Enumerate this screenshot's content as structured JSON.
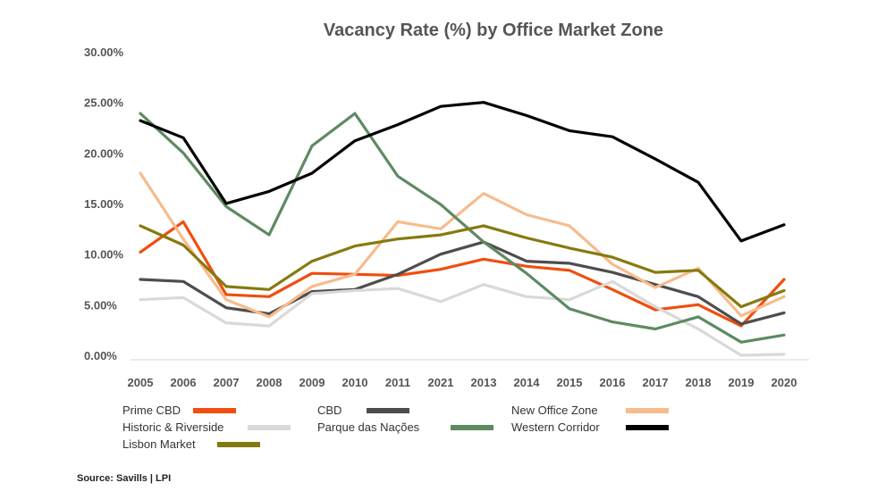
{
  "chart_data": {
    "type": "line",
    "title": "Vacancy Rate (%) by Office Market Zone",
    "xlabel": "",
    "ylabel": "",
    "ylim": [
      0,
      30
    ],
    "yticks": [
      0,
      5,
      10,
      15,
      20,
      25,
      30
    ],
    "ytick_labels": [
      "0.00%",
      "5.00%",
      "10.00%",
      "15.00%",
      "20.00%",
      "25.00%",
      "30.00%"
    ],
    "categories": [
      "2005",
      "2006",
      "2007",
      "2008",
      "2009",
      "2010",
      "2011",
      "2021",
      "2013",
      "2014",
      "2015",
      "2016",
      "2017",
      "2018",
      "2019",
      "2020"
    ],
    "series": [
      {
        "name": "Prime CBD",
        "color": "#F04E0F",
        "values": [
          10.2,
          13.2,
          6.0,
          5.8,
          8.1,
          8.0,
          7.9,
          8.5,
          9.5,
          8.8,
          8.4,
          6.5,
          4.5,
          5.0,
          2.9,
          7.5
        ]
      },
      {
        "name": "CBD",
        "color": "#4D4D4F",
        "values": [
          7.5,
          7.3,
          4.7,
          4.1,
          6.3,
          6.5,
          8.0,
          10.0,
          11.2,
          9.3,
          9.1,
          8.2,
          7.0,
          5.8,
          3.1,
          4.2
        ]
      },
      {
        "name": "New Office Zone",
        "color": "#F7BB8C",
        "values": [
          18.0,
          11.5,
          5.5,
          3.8,
          6.8,
          8.0,
          13.2,
          12.5,
          16.0,
          13.9,
          12.8,
          9.0,
          6.7,
          8.6,
          3.9,
          5.8
        ]
      },
      {
        "name": "Historic & Riverside",
        "color": "#D9D9D9",
        "values": [
          5.5,
          5.7,
          3.2,
          2.9,
          6.1,
          6.4,
          6.6,
          5.3,
          7.0,
          5.8,
          5.5,
          7.3,
          4.8,
          2.6,
          0.0,
          0.1
        ]
      },
      {
        "name": "Parque das Nações",
        "color": "#5E8A62",
        "values": [
          23.9,
          20.0,
          14.7,
          11.9,
          20.7,
          23.9,
          17.7,
          14.9,
          11.2,
          8.1,
          4.6,
          3.3,
          2.6,
          3.8,
          1.3,
          2.0
        ]
      },
      {
        "name": "Western Corridor",
        "color": "#000000",
        "values": [
          23.2,
          21.5,
          15.0,
          16.2,
          18.0,
          21.2,
          22.8,
          24.6,
          25.0,
          23.7,
          22.2,
          21.6,
          19.4,
          17.1,
          11.3,
          12.9
        ]
      },
      {
        "name": "Lisbon Market",
        "color": "#857A0E",
        "values": [
          12.8,
          10.9,
          6.8,
          6.5,
          9.3,
          10.8,
          11.5,
          11.9,
          12.8,
          11.6,
          10.6,
          9.7,
          8.2,
          8.4,
          4.8,
          6.4
        ]
      }
    ],
    "grid": false,
    "legend_position": "bottom"
  },
  "source": "Source: Savills | LPI"
}
